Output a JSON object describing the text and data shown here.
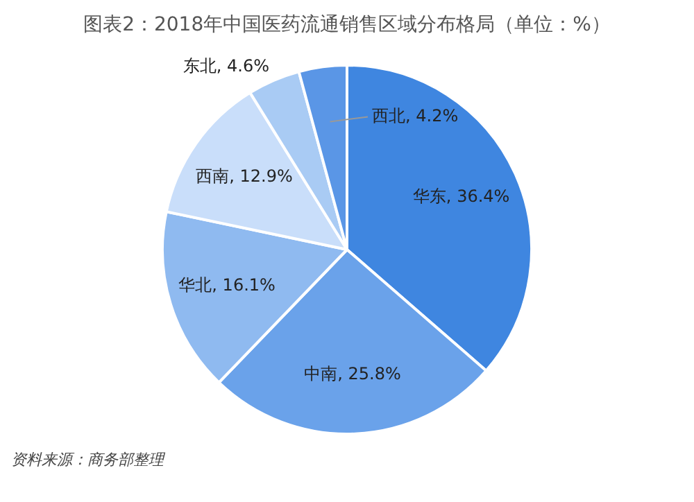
{
  "chart_data": {
    "type": "pie",
    "title": "图表2：2018年中国医药流通销售区域分布格局（单位：%）",
    "categories": [
      "华东",
      "中南",
      "华北",
      "西南",
      "东北",
      "西北"
    ],
    "values": [
      36.4,
      25.8,
      16.1,
      12.9,
      4.6,
      4.2
    ],
    "value_labels": [
      "36.4%",
      "25.8%",
      "16.1%",
      "12.9%",
      "4.6%",
      "4.2%"
    ],
    "colors": [
      "#3f86e0",
      "#6aa2ea",
      "#8fbaf0",
      "#c9defa",
      "#a9cbf4",
      "#5a96e6"
    ],
    "legend": false,
    "annotations": [
      "资料来源：商务部整理"
    ]
  }
}
